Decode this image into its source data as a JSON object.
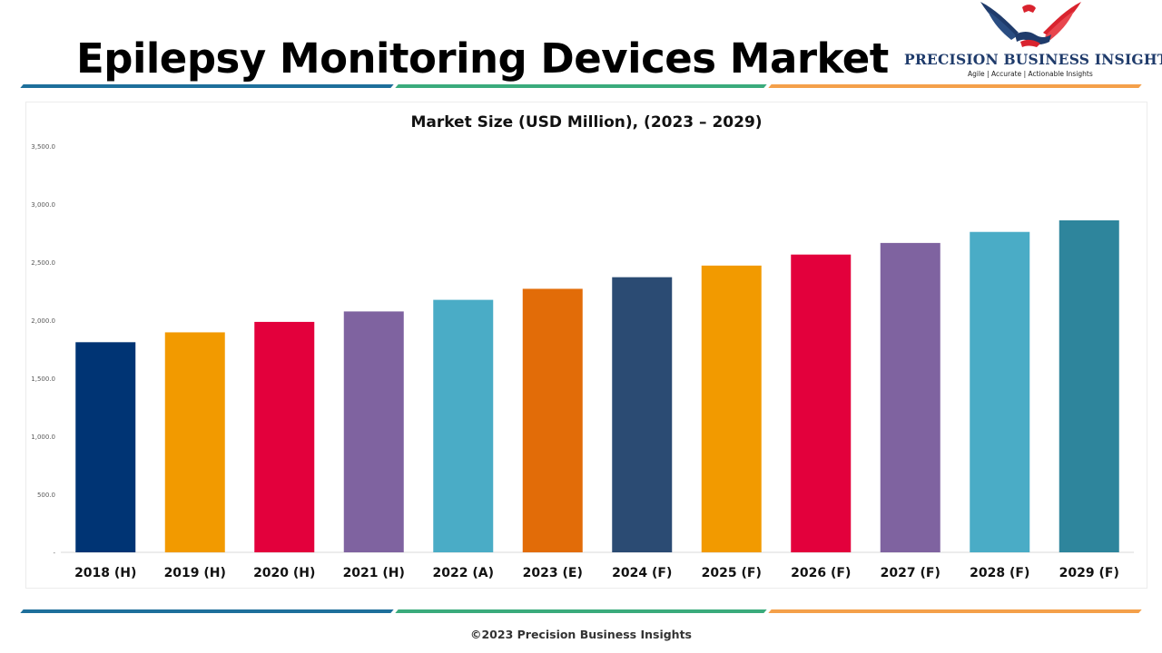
{
  "header": {
    "title": "Epilepsy Monitoring Devices Market",
    "brand_name": "PRECISION BUSINESS INSIGHTS",
    "brand_tagline": "Agile | Accurate | Actionable Insights"
  },
  "footer": {
    "copyright": "©2023 Precision Business Insights"
  },
  "colors": {
    "band_blue": "#1e6f9b",
    "band_green": "#3aab7c",
    "band_orange": "#f4a04a",
    "logo_blue": "#1f3b6b",
    "logo_red": "#d9232e"
  },
  "chart_data": {
    "type": "bar",
    "title": "Market Size (USD Million), (2023 – 2029)",
    "categories": [
      "2018 (H)",
      "2019 (H)",
      "2020 (H)",
      "2021 (H)",
      "2022 (A)",
      "2023 (E)",
      "2024 (F)",
      "2025 (F)",
      "2026 (F)",
      "2027 (F)",
      "2028 (F)",
      "2029 (F)"
    ],
    "values": [
      1810,
      1895,
      1985,
      2075,
      2175,
      2270,
      2370,
      2470,
      2565,
      2665,
      2760,
      2860
    ],
    "bar_colors": [
      "#003474",
      "#f29a00",
      "#e3003c",
      "#7f63a0",
      "#4aacc6",
      "#e26c08",
      "#2b4b73",
      "#f29a00",
      "#e3003c",
      "#7f63a0",
      "#4aacc6",
      "#2e859c"
    ],
    "ylim": [
      0,
      3500
    ],
    "yticks": [
      0,
      500,
      1000,
      1500,
      2000,
      2500,
      3000,
      3500
    ],
    "ytick_labels": [
      "-",
      "500.0",
      "1,000.0",
      "1,500.0",
      "2,000.0",
      "2,500.0",
      "3,000.0",
      "3,500.0"
    ],
    "xlabel": "",
    "ylabel": "",
    "grid": false,
    "legend": "none"
  }
}
